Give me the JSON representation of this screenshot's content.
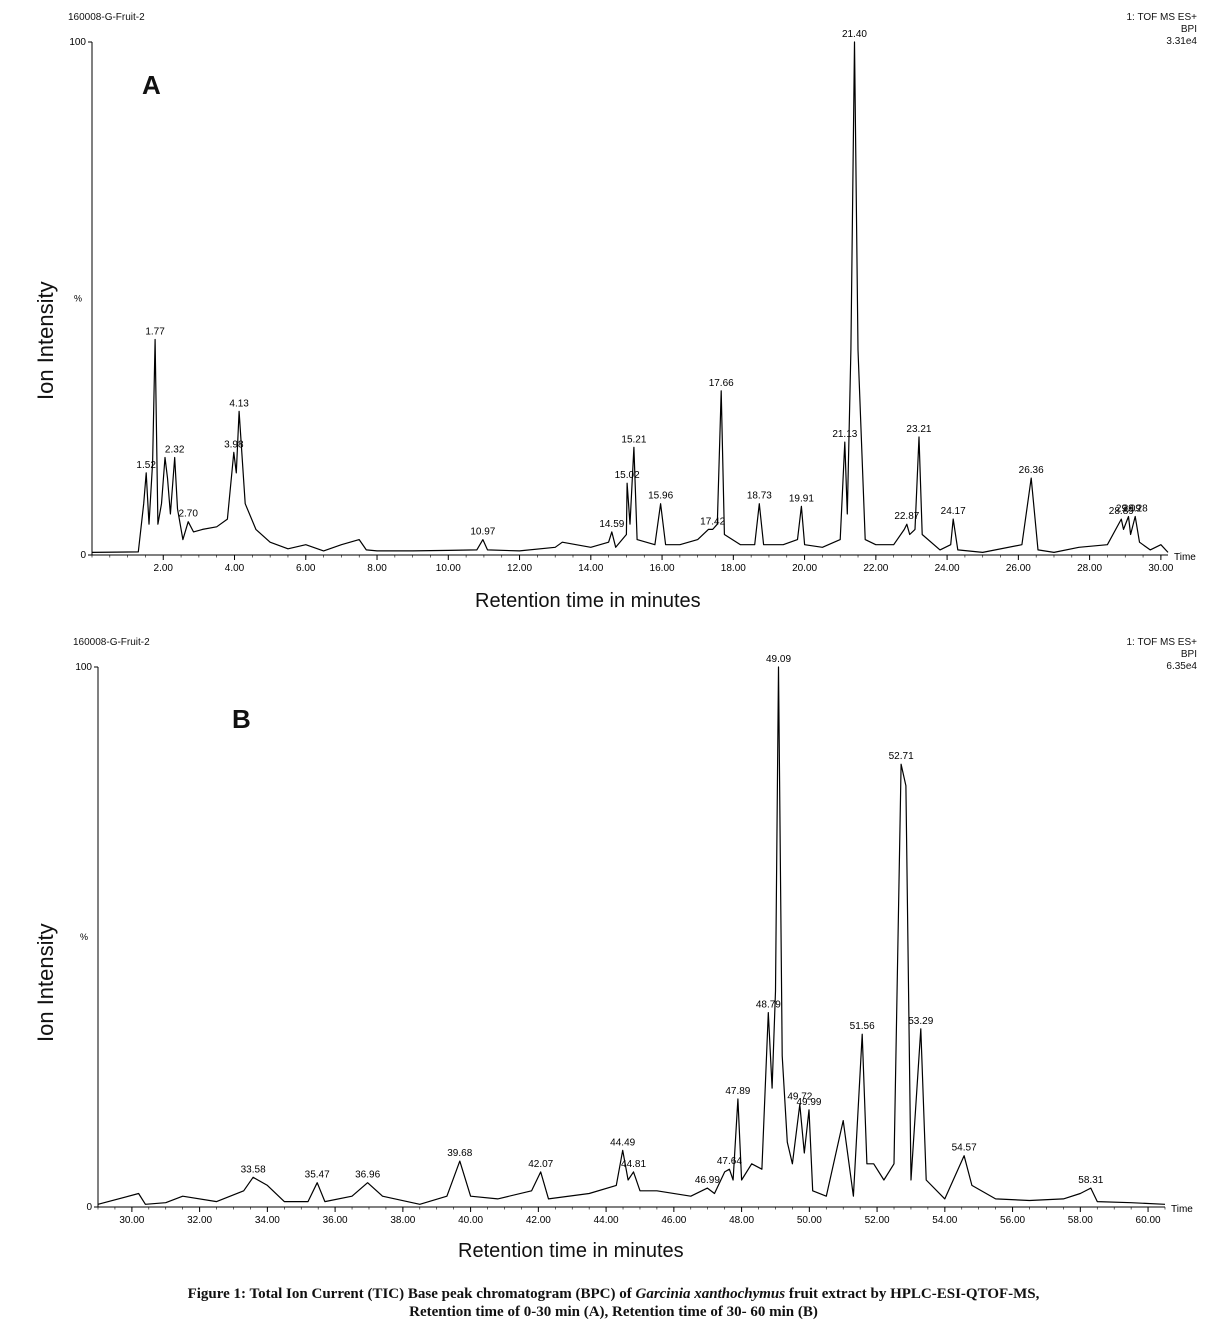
{
  "caption": {
    "line1_prefix": "Figure 1: Total Ion Current (TIC) Base peak chromatogram (BPC) of ",
    "line1_italic": "Garcinia xanthochymus",
    "line1_suffix": " fruit extract by HPLC-ESI-QTOF-MS,",
    "line2": "Retention time of 0-30 min (A), Retention time of 30- 60 min (B)"
  },
  "chart_data": [
    {
      "type": "line",
      "panel": "A",
      "sample_id": "160008-G-Fruit-2",
      "header_right": [
        "1: TOF MS ES+",
        "BPI",
        "3.31e4"
      ],
      "ylabel": "Ion Intensity",
      "y_unit_mark": "%",
      "xlabel": "Retention time in minutes",
      "x_axis_word": "Time",
      "xlim": [
        0,
        30.2
      ],
      "ylim": [
        0,
        100
      ],
      "y_ticks": [
        "0",
        "100"
      ],
      "x_ticks": [
        "2.00",
        "4.00",
        "6.00",
        "8.00",
        "10.00",
        "12.00",
        "14.00",
        "16.00",
        "18.00",
        "20.00",
        "22.00",
        "24.00",
        "26.00",
        "28.00",
        "30.00"
      ],
      "series": [
        {
          "x": [
            0.0,
            1.3,
            1.45,
            1.52,
            1.6,
            1.7,
            1.77,
            1.85,
            1.95,
            2.05,
            2.12,
            2.2,
            2.32,
            2.4,
            2.55,
            2.7,
            2.85,
            3.1,
            3.5,
            3.8,
            3.98,
            4.05,
            4.13,
            4.3,
            4.6,
            5.0,
            5.5,
            6.0,
            6.5,
            7.0,
            7.5,
            7.7,
            8.0,
            9.0,
            10.0,
            10.8,
            10.97,
            11.1,
            12.0,
            13.0,
            13.2,
            14.0,
            14.5,
            14.59,
            14.7,
            15.0,
            15.02,
            15.1,
            15.21,
            15.3,
            15.8,
            15.96,
            16.1,
            16.5,
            17.0,
            17.3,
            17.42,
            17.55,
            17.66,
            17.75,
            18.2,
            18.6,
            18.73,
            18.85,
            19.4,
            19.8,
            19.91,
            20.0,
            20.5,
            21.0,
            21.13,
            21.2,
            21.3,
            21.4,
            21.5,
            21.7,
            22.0,
            22.5,
            22.8,
            22.87,
            22.95,
            23.1,
            23.21,
            23.3,
            23.8,
            24.1,
            24.17,
            24.3,
            25.0,
            26.1,
            26.36,
            26.55,
            27.0,
            27.7,
            28.5,
            28.89,
            28.95,
            29.09,
            29.15,
            29.28,
            29.4,
            29.7,
            30.0,
            30.2
          ],
          "y": [
            0.5,
            0.6,
            10.0,
            16.0,
            6.0,
            18.0,
            42.0,
            6.0,
            10.0,
            19.0,
            15.0,
            8.0,
            19.0,
            9.0,
            3.0,
            6.5,
            4.5,
            5.0,
            5.5,
            7.0,
            20.0,
            16.0,
            28.0,
            10.0,
            5.0,
            2.5,
            1.2,
            2.0,
            0.8,
            2.0,
            3.0,
            1.0,
            0.8,
            0.8,
            0.9,
            1.0,
            3.0,
            1.0,
            0.8,
            1.5,
            2.5,
            1.5,
            2.5,
            4.5,
            1.5,
            4.0,
            14.0,
            6.0,
            21.0,
            3.0,
            2.0,
            10.0,
            2.0,
            2.0,
            3.0,
            5.0,
            5.0,
            6.0,
            32.0,
            4.0,
            2.0,
            2.0,
            10.0,
            2.0,
            2.0,
            3.0,
            9.5,
            2.0,
            1.5,
            3.0,
            22.0,
            8.0,
            40.0,
            100.0,
            40.0,
            3.0,
            2.0,
            2.0,
            5.0,
            6.0,
            4.0,
            5.0,
            23.0,
            4.0,
            1.0,
            2.0,
            7.0,
            1.0,
            0.5,
            2.0,
            15.0,
            1.0,
            0.5,
            1.5,
            2.0,
            7.0,
            5.0,
            7.5,
            4.0,
            7.5,
            2.5,
            1.0,
            2.0,
            0.5
          ]
        }
      ],
      "peak_labels": [
        {
          "x": 1.52,
          "y": 16.0,
          "label": "1.52"
        },
        {
          "x": 1.77,
          "y": 42.0,
          "label": "1.77"
        },
        {
          "x": 2.32,
          "y": 19.0,
          "label": "2.32"
        },
        {
          "x": 2.7,
          "y": 6.5,
          "label": "2.70"
        },
        {
          "x": 3.98,
          "y": 20.0,
          "label": "3.98"
        },
        {
          "x": 4.13,
          "y": 28.0,
          "label": "4.13"
        },
        {
          "x": 10.97,
          "y": 3.0,
          "label": "10.97"
        },
        {
          "x": 14.59,
          "y": 4.5,
          "label": "14.59"
        },
        {
          "x": 15.02,
          "y": 14.0,
          "label": "15.02"
        },
        {
          "x": 15.21,
          "y": 21.0,
          "label": "15.21"
        },
        {
          "x": 15.96,
          "y": 10.0,
          "label": "15.96"
        },
        {
          "x": 17.42,
          "y": 5.0,
          "label": "17.42"
        },
        {
          "x": 17.66,
          "y": 32.0,
          "label": "17.66"
        },
        {
          "x": 18.73,
          "y": 10.0,
          "label": "18.73"
        },
        {
          "x": 19.91,
          "y": 9.5,
          "label": "19.91"
        },
        {
          "x": 21.13,
          "y": 22.0,
          "label": "21.13"
        },
        {
          "x": 21.4,
          "y": 100.0,
          "label": "21.40"
        },
        {
          "x": 22.87,
          "y": 6.0,
          "label": "22.87"
        },
        {
          "x": 23.21,
          "y": 23.0,
          "label": "23.21"
        },
        {
          "x": 24.17,
          "y": 7.0,
          "label": "24.17"
        },
        {
          "x": 26.36,
          "y": 15.0,
          "label": "26.36"
        },
        {
          "x": 28.89,
          "y": 7.0,
          "label": "28.89"
        },
        {
          "x": 29.09,
          "y": 7.5,
          "label": "29.09"
        },
        {
          "x": 29.28,
          "y": 7.5,
          "label": "29.28"
        }
      ]
    },
    {
      "type": "line",
      "panel": "B",
      "sample_id": "160008-G-Fruit-2",
      "header_right": [
        "1: TOF MS ES+",
        "BPI",
        "6.35e4"
      ],
      "ylabel": "Ion Intensity",
      "y_unit_mark": "%",
      "xlabel": "Retention time in minutes",
      "x_axis_word": "Time",
      "xlim": [
        29.0,
        60.5
      ],
      "ylim": [
        0,
        100
      ],
      "y_ticks": [
        "0",
        "100"
      ],
      "x_ticks": [
        "30.00",
        "32.00",
        "34.00",
        "36.00",
        "38.00",
        "40.00",
        "42.00",
        "44.00",
        "46.00",
        "48.00",
        "50.00",
        "52.00",
        "54.00",
        "56.00",
        "58.00",
        "60.00"
      ],
      "series": [
        {
          "x": [
            29.0,
            30.2,
            30.4,
            31.0,
            31.5,
            32.5,
            33.3,
            33.58,
            34.0,
            34.5,
            35.2,
            35.47,
            35.7,
            36.5,
            36.96,
            37.4,
            38.5,
            39.3,
            39.68,
            40.0,
            40.8,
            41.8,
            42.07,
            42.3,
            43.5,
            44.3,
            44.49,
            44.65,
            44.81,
            45.0,
            45.5,
            46.5,
            46.99,
            47.2,
            47.5,
            47.64,
            47.75,
            47.89,
            48.0,
            48.3,
            48.6,
            48.79,
            48.9,
            49.0,
            49.09,
            49.2,
            49.35,
            49.5,
            49.72,
            49.85,
            49.99,
            50.1,
            50.5,
            51.0,
            51.3,
            51.56,
            51.7,
            51.9,
            52.2,
            52.5,
            52.71,
            52.85,
            53.0,
            53.29,
            53.45,
            54.0,
            54.57,
            54.8,
            55.5,
            56.5,
            57.5,
            58.0,
            58.31,
            58.5,
            59.5,
            60.5
          ],
          "y": [
            0.5,
            2.5,
            0.5,
            0.8,
            2.0,
            1.0,
            3.0,
            5.5,
            4.0,
            1.0,
            1.0,
            4.5,
            1.0,
            2.0,
            4.5,
            2.0,
            0.5,
            2.0,
            8.5,
            2.0,
            1.5,
            3.0,
            6.5,
            1.5,
            2.5,
            4.0,
            10.5,
            5.0,
            6.5,
            3.0,
            3.0,
            2.0,
            3.5,
            2.5,
            6.5,
            7.0,
            5.0,
            20.0,
            5.0,
            8.0,
            7.0,
            36.0,
            22.0,
            40.0,
            100.0,
            28.0,
            12.0,
            8.0,
            19.0,
            10.0,
            18.0,
            3.0,
            2.0,
            16.0,
            2.0,
            32.0,
            8.0,
            8.0,
            5.0,
            8.0,
            82.0,
            78.0,
            5.0,
            33.0,
            5.0,
            1.5,
            9.5,
            4.0,
            1.5,
            1.2,
            1.5,
            2.5,
            3.5,
            1.0,
            0.8,
            0.5
          ]
        }
      ],
      "peak_labels": [
        {
          "x": 33.58,
          "y": 5.5,
          "label": "33.58"
        },
        {
          "x": 35.47,
          "y": 4.5,
          "label": "35.47"
        },
        {
          "x": 36.96,
          "y": 4.5,
          "label": "36.96"
        },
        {
          "x": 39.68,
          "y": 8.5,
          "label": "39.68"
        },
        {
          "x": 42.07,
          "y": 6.5,
          "label": "42.07"
        },
        {
          "x": 44.49,
          "y": 10.5,
          "label": "44.49"
        },
        {
          "x": 44.81,
          "y": 6.5,
          "label": "44.81"
        },
        {
          "x": 46.99,
          "y": 3.5,
          "label": "46.99"
        },
        {
          "x": 47.64,
          "y": 7.0,
          "label": "47.64"
        },
        {
          "x": 47.89,
          "y": 20.0,
          "label": "47.89"
        },
        {
          "x": 48.79,
          "y": 36.0,
          "label": "48.79"
        },
        {
          "x": 49.09,
          "y": 100.0,
          "label": "49.09"
        },
        {
          "x": 49.72,
          "y": 19.0,
          "label": "49.72"
        },
        {
          "x": 49.99,
          "y": 18.0,
          "label": "49.99"
        },
        {
          "x": 51.56,
          "y": 32.0,
          "label": "51.56"
        },
        {
          "x": 52.71,
          "y": 82.0,
          "label": "52.71"
        },
        {
          "x": 53.29,
          "y": 33.0,
          "label": "53.29"
        },
        {
          "x": 54.57,
          "y": 9.5,
          "label": "54.57"
        },
        {
          "x": 58.31,
          "y": 3.5,
          "label": "58.31"
        }
      ]
    }
  ]
}
